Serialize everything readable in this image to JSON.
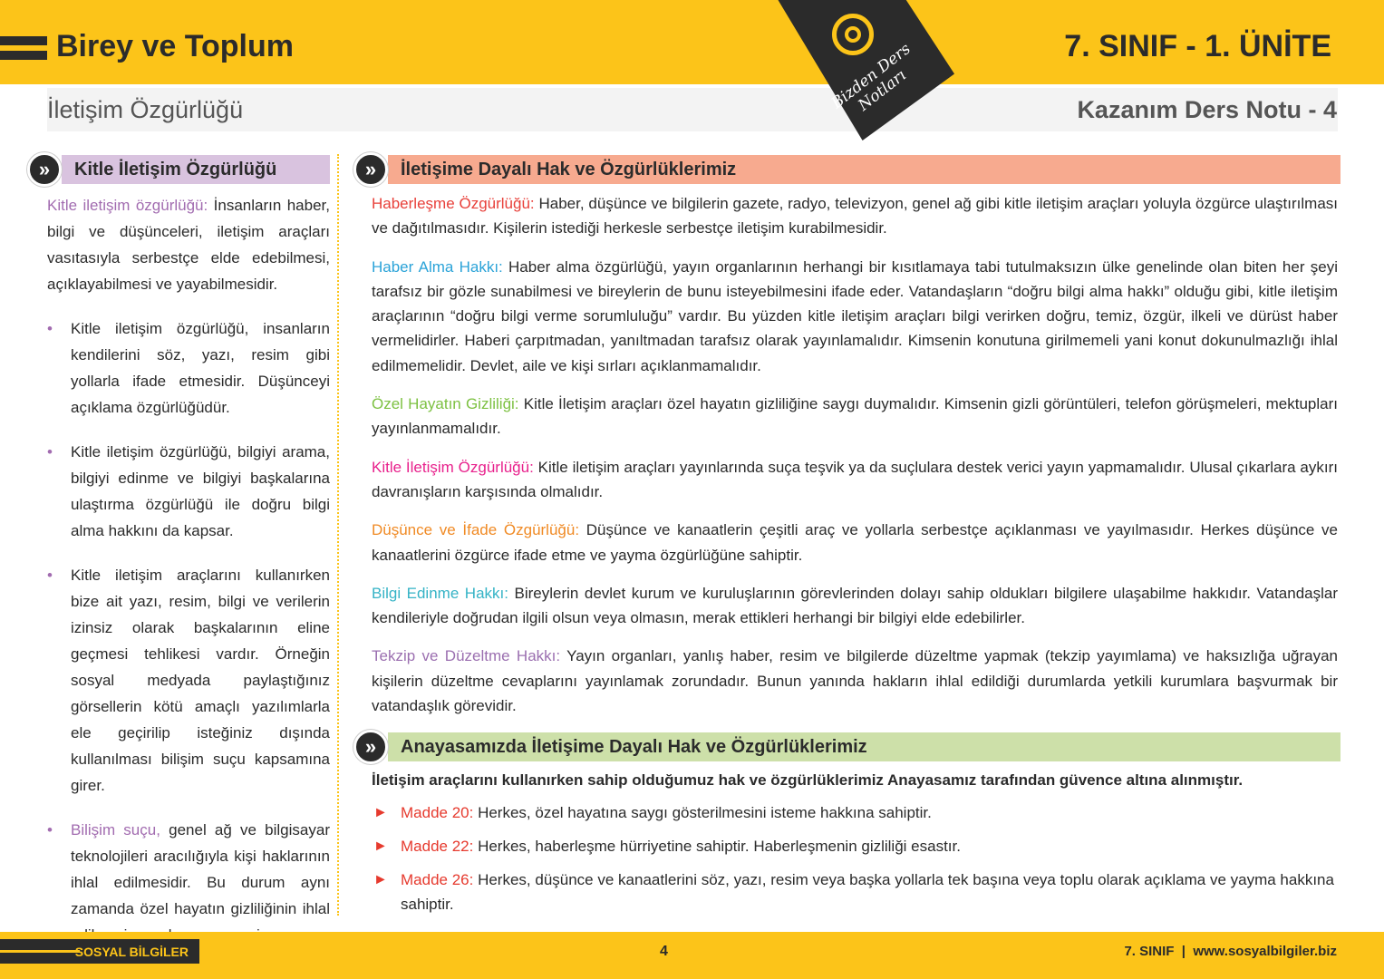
{
  "header": {
    "title": "Birey ve Toplum",
    "unit": "7. SINIF - 1. ÜNİTE",
    "subtitle": "İletişim Özgürlüğü",
    "note": "Kazanım Ders Notu - 4",
    "badge": "Bizden Ders Notları"
  },
  "left": {
    "heading": "Kitle İletişim Özgürlüğü",
    "def_term": "Kitle iletişim özgürlüğü:",
    "def_text": " İnsanların haber, bilgi ve düşünceleri, iletişim araçları vasıtasıyla serbestçe elde edebilmesi, açıklayabilmesi ve yayabilmesidir.",
    "bullets": [
      "Kitle iletişim özgürlüğü, insanların kendilerini söz, yazı, resim gibi yollarla ifade etmesidir. Düşünceyi açıklama özgürlüğüdür.",
      "Kitle iletişim özgürlüğü, bilgiyi arama, bilgiyi edinme ve bilgiyi başkalarına ulaştırma özgürlüğü ile doğru bilgi alma hakkını da kapsar.",
      "Kitle iletişim araçlarını kullanırken bize ait yazı, resim, bilgi ve verilerin izinsiz olarak başkalarının eline geçmesi tehlikesi vardır. Örneğin sosyal medyada paylaştığınız görsellerin kötü amaçlı yazılımlarla ele geçirilip isteğiniz dışında kullanılması bilişim suçu kapsamına girer."
    ],
    "last_term": "Bilişim suçu,",
    "last_text": " genel ağ ve bilgisayar teknolojileri aracılığıyla kişi haklarının ihlal edilmesidir. Bu durum aynı zamanda özel hayatın gizliliğinin ihlal edilmesi suçu kapsamına girer."
  },
  "right": {
    "heading": "İletişime Dayalı Hak ve Özgürlüklerimiz",
    "items": [
      {
        "term": "Haberleşme Özgürlüğü:",
        "color": "#e8403a",
        "text": " Haber, düşünce ve bilgilerin gazete, radyo, televizyon, genel ağ gibi kitle iletişim araçları yoluyla özgürce ulaştırılması ve dağıtılmasıdır. Kişilerin istediği herkesle serbestçe iletişim kurabilmesidir."
      },
      {
        "term": "Haber Alma Hakkı:",
        "color": "#2ba3d8",
        "text": " Haber alma özgürlüğü, yayın organlarının herhangi bir kısıtlamaya tabi tutulmaksızın ülke genelinde olan biten her şeyi tarafsız bir gözle sunabilmesi ve bireylerin de bunu isteyebilmesini ifade eder. Vatandaşların “doğru bilgi alma hakkı” olduğu gibi, kitle iletişim araçlarının “doğru bilgi verme sorumluluğu” vardır. Bu yüzden kitle iletişim araçları bilgi verirken doğru, temiz, özgür, ilkeli ve dürüst haber vermelidirler. Haberi çarpıtmadan, yanıltmadan tarafsız olarak yayınlamalıdır. Kimsenin konutuna girilmemeli yani konut dokunulmazlığı ihlal edilmemelidir. Devlet, aile ve kişi sırları açıklanmamalıdır."
      },
      {
        "term": "Özel Hayatın Gizliliği:",
        "color": "#7dc142",
        "text": " Kitle İletişim araçları özel hayatın gizliliğine saygı duymalıdır. Kimsenin gizli görüntüleri, telefon görüşmeleri, mektupları yayınlanmamalıdır."
      },
      {
        "term": "Kitle İletişim Özgürlüğü:",
        "color": "#e8218c",
        "text": " Kitle iletişim araçları yayınlarında suça teşvik ya da suçlulara destek verici yayın yapmamalıdır. Ulusal çıkarlara aykırı davranışların karşısında olmalıdır."
      },
      {
        "term": "Düşünce ve İfade Özgürlüğü:",
        "color": "#f08a24",
        "text": " Düşünce ve kanaatlerin çeşitli araç ve yollarla serbestçe açıklanması ve yayılmasıdır. Herkes düşünce ve kanaatlerini özgürce ifade etme ve yayma özgürlüğüne sahiptir."
      },
      {
        "term": "Bilgi Edinme Hakkı:",
        "color": "#35b3c6",
        "text": " Bireylerin devlet kurum ve kuruluşlarının görevlerinden dolayı sahip oldukları bilgilere ulaşabilme hakkıdır. Vatandaşlar kendileriyle doğrudan ilgili olsun veya olmasın, merak ettikleri herhangi bir bilgiyi elde edebilirler."
      },
      {
        "term": "Tekzip ve Düzeltme Hakkı:",
        "color": "#9b6fb0",
        "text": " Yayın organları, yanlış haber, resim ve bilgilerde düzeltme yapmak (tekzip yayımlama) ve haksızlığa uğrayan kişilerin düzeltme cevaplarını yayınlamak zorundadır. Bunun yanında hakların ihlal edildiği durumlarda yetkili kurumlara başvurmak bir vatandaşlık görevidir."
      }
    ],
    "heading2": "Anayasamızda İletişime Dayalı Hak ve Özgürlüklerimiz",
    "intro": "İletişim araçlarını kullanırken sahip olduğumuz hak ve özgürlüklerimiz Anayasamız tarafından güvence altına alınmıştır.",
    "maddeler": [
      {
        "term": "Madde 20:",
        "text": " Herkes, özel hayatına saygı gösterilmesini isteme hakkına sahiptir."
      },
      {
        "term": "Madde 22:",
        "text": " Herkes, haberleşme hürriyetine sahiptir. Haberleşmenin gizliliği esastır."
      },
      {
        "term": "Madde 26:",
        "text": " Herkes, düşünce ve kanaatlerini söz, yazı, resim veya başka yollarla tek başına veya toplu olarak açıklama ve yayma hakkına sahiptir."
      }
    ]
  },
  "footer": {
    "subject": "SOSYAL BİLGİLER",
    "page": "4",
    "right": "7. SINIF  |  www.sosyalbilgiler.biz"
  },
  "colors": {
    "accent": "#fcc419",
    "dark": "#2b2b2b",
    "left_heading": "#d9c3df",
    "right_heading": "#f7aa8f",
    "heading2": "#cde0a9"
  }
}
